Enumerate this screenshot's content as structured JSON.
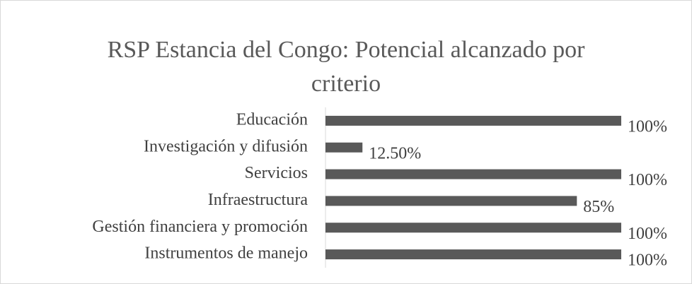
{
  "chart_data": {
    "type": "hbar",
    "title": "RSP Estancia del Congo: Potencial alcanzado por criterio",
    "categories": [
      "Educación",
      "Investigación y difusión",
      "Servicios",
      "Infraestructura",
      "Gestión financiera y promoción",
      "Instrumentos de manejo"
    ],
    "values": [
      100,
      12.5,
      100,
      85,
      100,
      100
    ],
    "value_labels": [
      "100%",
      "12.50%",
      "100%",
      "85%",
      "100%",
      "100%"
    ],
    "color": "#595959",
    "xlim": [
      0,
      100
    ]
  }
}
